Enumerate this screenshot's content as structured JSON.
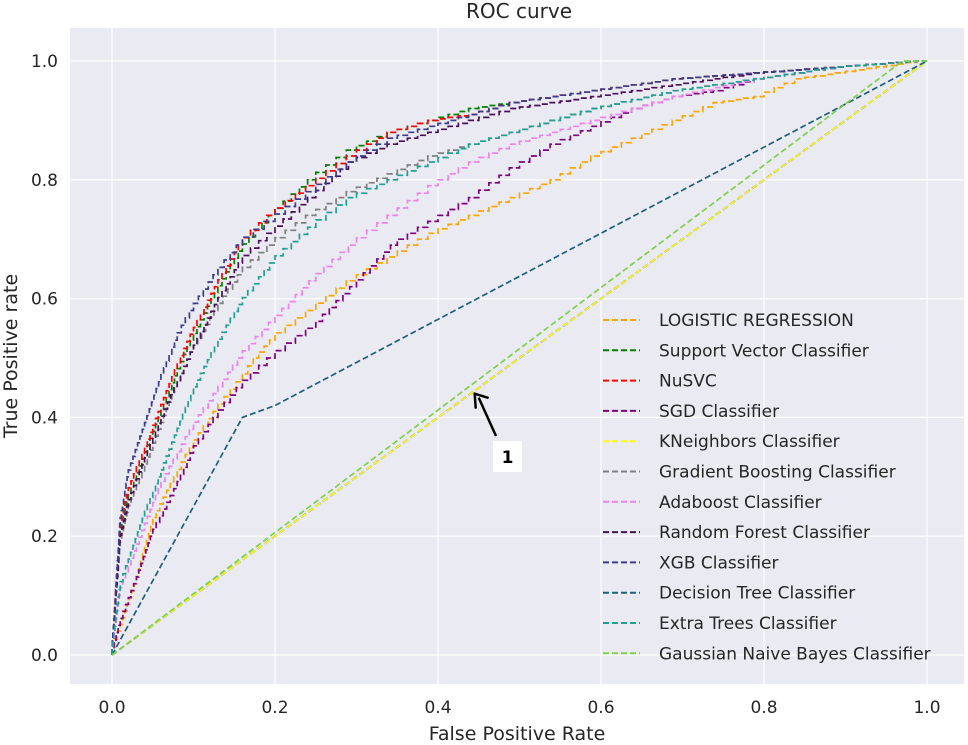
{
  "chart_data": {
    "type": "line",
    "title": "ROC curve",
    "xlabel": "False Positive Rate",
    "ylabel": "True Positive rate",
    "xlim": [
      -0.05,
      1.05
    ],
    "ylim": [
      -0.05,
      1.05
    ],
    "xticks": [
      0.0,
      0.2,
      0.4,
      0.6,
      0.8,
      1.0
    ],
    "yticks": [
      0.0,
      0.2,
      0.4,
      0.6,
      0.8,
      1.0
    ],
    "xtick_labels": [
      "0.0",
      "0.2",
      "0.4",
      "0.6",
      "0.8",
      "1.0"
    ],
    "ytick_labels": [
      "0.0",
      "0.2",
      "0.4",
      "0.6",
      "0.8",
      "1.0"
    ],
    "grid": true,
    "background_color": "#eaeaf2",
    "grid_color": "#ffffff",
    "legend_position": "lower-right",
    "series": [
      {
        "name": "LOGISTIC REGRESSION",
        "color": "#ffa500",
        "x": [
          0,
          0.01,
          0.03,
          0.05,
          0.08,
          0.1,
          0.13,
          0.16,
          0.18,
          0.2,
          0.25,
          0.3,
          0.35,
          0.4,
          0.45,
          0.5,
          0.55,
          0.6,
          0.65,
          0.7,
          0.75,
          0.8,
          0.85,
          0.9,
          1.0
        ],
        "y": [
          0,
          0.04,
          0.12,
          0.22,
          0.3,
          0.35,
          0.41,
          0.46,
          0.5,
          0.53,
          0.58,
          0.63,
          0.67,
          0.71,
          0.74,
          0.77,
          0.8,
          0.84,
          0.87,
          0.9,
          0.93,
          0.94,
          0.97,
          0.98,
          1.0
        ]
      },
      {
        "name": "Support Vector Classifier",
        "color": "#008000",
        "x": [
          0,
          0.01,
          0.02,
          0.04,
          0.06,
          0.08,
          0.1,
          0.13,
          0.16,
          0.2,
          0.25,
          0.3,
          0.35,
          0.4,
          0.45,
          0.5,
          0.6,
          0.7,
          0.8,
          0.9,
          1.0
        ],
        "y": [
          0,
          0.2,
          0.26,
          0.33,
          0.4,
          0.47,
          0.53,
          0.61,
          0.68,
          0.74,
          0.8,
          0.85,
          0.88,
          0.9,
          0.92,
          0.93,
          0.95,
          0.97,
          0.98,
          0.99,
          1.0
        ]
      },
      {
        "name": "NuSVC",
        "color": "#ff0000",
        "x": [
          0,
          0.01,
          0.02,
          0.04,
          0.06,
          0.08,
          0.1,
          0.13,
          0.16,
          0.2,
          0.25,
          0.3,
          0.35,
          0.4,
          0.45,
          0.5,
          0.6,
          0.7,
          0.8,
          0.9,
          1.0
        ],
        "y": [
          0,
          0.21,
          0.27,
          0.34,
          0.41,
          0.48,
          0.54,
          0.62,
          0.69,
          0.74,
          0.79,
          0.84,
          0.88,
          0.9,
          0.91,
          0.93,
          0.95,
          0.97,
          0.98,
          0.99,
          1.0
        ]
      },
      {
        "name": "SGD Classifier",
        "color": "#800080",
        "x": [
          0,
          0.01,
          0.03,
          0.05,
          0.08,
          0.1,
          0.13,
          0.16,
          0.2,
          0.25,
          0.3,
          0.35,
          0.4,
          0.45,
          0.5,
          0.55,
          0.6,
          0.65,
          0.7,
          0.75,
          0.8,
          0.85,
          0.9,
          1.0
        ],
        "y": [
          0,
          0.05,
          0.12,
          0.2,
          0.28,
          0.34,
          0.4,
          0.45,
          0.5,
          0.55,
          0.62,
          0.69,
          0.73,
          0.77,
          0.82,
          0.86,
          0.89,
          0.92,
          0.94,
          0.95,
          0.97,
          0.98,
          0.99,
          1.0
        ]
      },
      {
        "name": "KNeighbors Classifier",
        "color": "#ffff00",
        "x": [
          0,
          1.0
        ],
        "y": [
          0,
          1.0
        ]
      },
      {
        "name": "Gradient Boosting Classifier",
        "color": "#808080",
        "x": [
          0,
          0.01,
          0.02,
          0.04,
          0.06,
          0.08,
          0.1,
          0.13,
          0.16,
          0.2,
          0.25,
          0.3,
          0.35,
          0.4,
          0.45,
          0.5,
          0.6,
          0.7,
          0.8,
          0.9,
          1.0
        ],
        "y": [
          0,
          0.18,
          0.24,
          0.31,
          0.38,
          0.45,
          0.51,
          0.58,
          0.64,
          0.69,
          0.74,
          0.78,
          0.81,
          0.84,
          0.86,
          0.88,
          0.92,
          0.95,
          0.97,
          0.99,
          1.0
        ]
      },
      {
        "name": "Adaboost Classifier",
        "color": "#ee82ee",
        "x": [
          0,
          0.01,
          0.02,
          0.04,
          0.06,
          0.08,
          0.1,
          0.13,
          0.16,
          0.2,
          0.25,
          0.3,
          0.35,
          0.4,
          0.45,
          0.5,
          0.6,
          0.7,
          0.8,
          0.9,
          1.0
        ],
        "y": [
          0,
          0.1,
          0.14,
          0.21,
          0.28,
          0.33,
          0.38,
          0.44,
          0.5,
          0.56,
          0.63,
          0.69,
          0.74,
          0.79,
          0.83,
          0.86,
          0.9,
          0.94,
          0.97,
          0.99,
          1.0
        ]
      },
      {
        "name": "Random Forest Classifier",
        "color": "#4b0f5a",
        "x": [
          0,
          0.01,
          0.02,
          0.04,
          0.06,
          0.08,
          0.1,
          0.13,
          0.16,
          0.2,
          0.25,
          0.3,
          0.35,
          0.4,
          0.45,
          0.5,
          0.6,
          0.7,
          0.8,
          0.9,
          1.0
        ],
        "y": [
          0,
          0.19,
          0.25,
          0.32,
          0.39,
          0.45,
          0.51,
          0.59,
          0.66,
          0.71,
          0.77,
          0.83,
          0.86,
          0.88,
          0.9,
          0.92,
          0.94,
          0.96,
          0.98,
          0.99,
          1.0
        ]
      },
      {
        "name": "XGB Classifier",
        "color": "#3b3b8f",
        "x": [
          0,
          0.01,
          0.02,
          0.04,
          0.06,
          0.08,
          0.1,
          0.13,
          0.16,
          0.2,
          0.25,
          0.3,
          0.35,
          0.4,
          0.45,
          0.5,
          0.6,
          0.7,
          0.8,
          0.9,
          1.0
        ],
        "y": [
          0,
          0.22,
          0.3,
          0.38,
          0.46,
          0.53,
          0.58,
          0.64,
          0.69,
          0.73,
          0.78,
          0.83,
          0.87,
          0.89,
          0.91,
          0.93,
          0.95,
          0.97,
          0.98,
          0.99,
          1.0
        ]
      },
      {
        "name": "Decision Tree Classifier",
        "color": "#1f5f7a",
        "x": [
          0,
          0.16,
          0.2,
          1.0
        ],
        "y": [
          0,
          0.4,
          0.42,
          1.0
        ]
      },
      {
        "name": "Extra Trees Classifier",
        "color": "#20a090",
        "x": [
          0,
          0.01,
          0.02,
          0.04,
          0.06,
          0.08,
          0.1,
          0.13,
          0.16,
          0.2,
          0.25,
          0.3,
          0.35,
          0.4,
          0.45,
          0.5,
          0.6,
          0.7,
          0.8,
          0.9,
          1.0
        ],
        "y": [
          0,
          0.11,
          0.15,
          0.23,
          0.3,
          0.37,
          0.44,
          0.52,
          0.59,
          0.66,
          0.72,
          0.77,
          0.8,
          0.83,
          0.86,
          0.88,
          0.92,
          0.95,
          0.97,
          0.99,
          1.0
        ]
      },
      {
        "name": "Gaussian Naive Bayes Classifier",
        "color": "#7fd04a",
        "x": [
          0,
          0.97,
          1.0
        ],
        "y": [
          0,
          1.0,
          1.0
        ]
      }
    ],
    "reference_line": {
      "x": [
        0,
        1
      ],
      "y": [
        0,
        1
      ],
      "color": "#0000cd"
    },
    "annotations": [
      {
        "text": "1",
        "arrow_tip_x": 0.445,
        "arrow_tip_y": 0.44
      }
    ]
  }
}
